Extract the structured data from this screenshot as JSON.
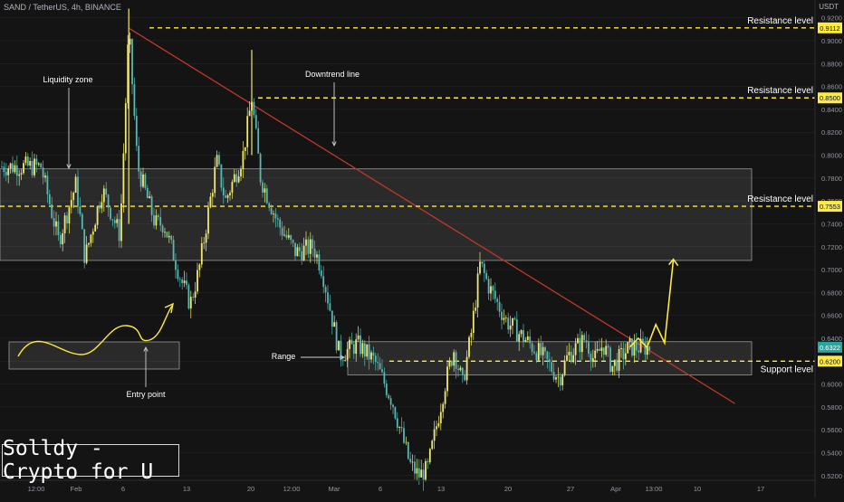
{
  "header": {
    "symbol_line": "SAND / TetherUS, 4h, BINANCE",
    "unit": "USDT"
  },
  "brand": "Solldy - Crypto for U",
  "colors": {
    "background": "#141414",
    "candle_up": "#f0ea6c",
    "candle_down": "#57b8b4",
    "trend": "#c0392b",
    "level": "#ffeb3b",
    "text": "#ffffff",
    "axis_text": "#9598a1",
    "grid": "#2a2a2a"
  },
  "annotations": {
    "liquidity_zone": "Liquidity zone",
    "downtrend_line": "Downtrend line",
    "entry_point": "Entry point",
    "range": "Range"
  },
  "chart_data": {
    "type": "candlestick",
    "title": "SAND / TetherUS, 4h, BINANCE",
    "ylabel": "USDT",
    "ylim": [
      0.51,
      0.93
    ],
    "y_ticks": [
      "0.9200",
      "0.9000",
      "0.8800",
      "0.8600",
      "0.8400",
      "0.8200",
      "0.8000",
      "0.7800",
      "0.7600",
      "0.7400",
      "0.7200",
      "0.7000",
      "0.6800",
      "0.6600",
      "0.6400",
      "0.6200",
      "0.6000",
      "0.5800",
      "0.5600",
      "0.5400",
      "0.5200"
    ],
    "x_ticks": [
      "12:00",
      "Feb",
      "6",
      "13",
      "20",
      "12:00",
      "Mar",
      "6",
      "13",
      "20",
      "27",
      "Apr",
      "13:00",
      "10",
      "17"
    ],
    "price_labels": [
      {
        "value": "0.9112",
        "style": "level"
      },
      {
        "value": "0.8500",
        "style": "level"
      },
      {
        "value": "0.7553",
        "style": "level"
      },
      {
        "value": "0.6322",
        "style": "current"
      },
      {
        "value": "0.6200",
        "style": "level"
      }
    ],
    "levels": [
      {
        "label": "Resistance level",
        "price": 0.9112
      },
      {
        "label": "Resistance level",
        "price": 0.85
      },
      {
        "label": "Resistance level",
        "price": 0.7553
      },
      {
        "label": "Support level",
        "price": 0.62
      }
    ],
    "zones": [
      {
        "name": "resistance-zone",
        "from": 0.708,
        "to": 0.788
      },
      {
        "name": "range-zone",
        "from": 0.608,
        "to": 0.637
      }
    ],
    "trendline": {
      "start": {
        "date": "Feb 7",
        "price": 0.911
      },
      "end": {
        "date": "Apr 17",
        "price": 0.583
      }
    },
    "price_path": [
      {
        "date": "Jan 28",
        "price": 0.79
      },
      {
        "date": "Jan 30",
        "price": 0.725
      },
      {
        "date": "Feb 1",
        "price": 0.775
      },
      {
        "date": "Feb 2",
        "price": 0.71
      },
      {
        "date": "Feb 4",
        "price": 0.77
      },
      {
        "date": "Feb 6",
        "price": 0.73
      },
      {
        "date": "Feb 7",
        "price": 0.91
      },
      {
        "date": "Feb 8",
        "price": 0.79
      },
      {
        "date": "Feb 10",
        "price": 0.74
      },
      {
        "date": "Feb 11",
        "price": 0.74
      },
      {
        "date": "Feb 13",
        "price": 0.69
      },
      {
        "date": "Feb 14",
        "price": 0.67
      },
      {
        "date": "Feb 15",
        "price": 0.7
      },
      {
        "date": "Feb 17",
        "price": 0.795
      },
      {
        "date": "Feb 18",
        "price": 0.76
      },
      {
        "date": "Feb 20",
        "price": 0.8
      },
      {
        "date": "Feb 21",
        "price": 0.85
      },
      {
        "date": "Feb 22",
        "price": 0.78
      },
      {
        "date": "Feb 24",
        "price": 0.74
      },
      {
        "date": "Feb 26",
        "price": 0.715
      },
      {
        "date": "Feb 28",
        "price": 0.72
      },
      {
        "date": "Mar 1",
        "price": 0.7
      },
      {
        "date": "Mar 3",
        "price": 0.625
      },
      {
        "date": "Mar 5",
        "price": 0.635
      },
      {
        "date": "Mar 7",
        "price": 0.62
      },
      {
        "date": "Mar 9",
        "price": 0.585
      },
      {
        "date": "Mar 11",
        "price": 0.53
      },
      {
        "date": "Mar 12",
        "price": 0.52
      },
      {
        "date": "Mar 13",
        "price": 0.525
      },
      {
        "date": "Mar 15",
        "price": 0.6
      },
      {
        "date": "Mar 16",
        "price": 0.63
      },
      {
        "date": "Mar 17",
        "price": 0.6
      },
      {
        "date": "Mar 18",
        "price": 0.645
      },
      {
        "date": "Mar 19",
        "price": 0.705
      },
      {
        "date": "Mar 20",
        "price": 0.685
      },
      {
        "date": "Mar 22",
        "price": 0.655
      },
      {
        "date": "Mar 24",
        "price": 0.64
      },
      {
        "date": "Mar 26",
        "price": 0.625
      },
      {
        "date": "Mar 28",
        "price": 0.605
      },
      {
        "date": "Mar 29",
        "price": 0.625
      },
      {
        "date": "Mar 31",
        "price": 0.64
      },
      {
        "date": "Apr 1",
        "price": 0.62
      },
      {
        "date": "Apr 2",
        "price": 0.635
      },
      {
        "date": "Apr 3",
        "price": 0.615
      },
      {
        "date": "Apr 5",
        "price": 0.632
      }
    ],
    "projection_path": [
      {
        "date": "Apr 5",
        "price": 0.632
      },
      {
        "date": "Apr 6",
        "price": 0.64
      },
      {
        "date": "Apr 7",
        "price": 0.632
      },
      {
        "date": "Apr 8",
        "price": 0.652
      },
      {
        "date": "Apr 9",
        "price": 0.636
      },
      {
        "date": "Apr 10",
        "price": 0.709
      }
    ],
    "legend": "none",
    "grid": false
  }
}
